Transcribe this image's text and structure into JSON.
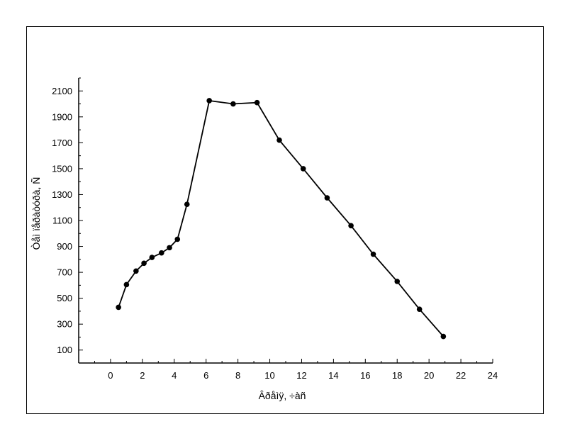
{
  "chart_data": {
    "type": "line",
    "title": "",
    "xlabel": "Âðåìÿ, ÷àñ",
    "ylabel": "Òåì ïåðàòóðà, Ñ",
    "xlim": [
      -2,
      24
    ],
    "ylim": [
      0,
      2200
    ],
    "x_ticks": [
      0,
      2,
      4,
      6,
      8,
      10,
      12,
      14,
      16,
      18,
      20,
      22,
      24
    ],
    "y_ticks": [
      100,
      300,
      500,
      700,
      900,
      1100,
      1300,
      1500,
      1700,
      1900,
      2100
    ],
    "grid": false,
    "series": [
      {
        "x": [
          0.5,
          1.0,
          1.6,
          2.1,
          2.6,
          3.2,
          3.7,
          4.2,
          4.8,
          6.2,
          7.7,
          9.2,
          10.6,
          12.1,
          13.6,
          15.1,
          16.5,
          18.0,
          19.4,
          20.9
        ],
        "y": [
          430,
          605,
          710,
          770,
          815,
          850,
          890,
          955,
          1225,
          2025,
          2000,
          2010,
          1720,
          1500,
          1275,
          1060,
          840,
          630,
          415,
          205
        ]
      }
    ]
  }
}
